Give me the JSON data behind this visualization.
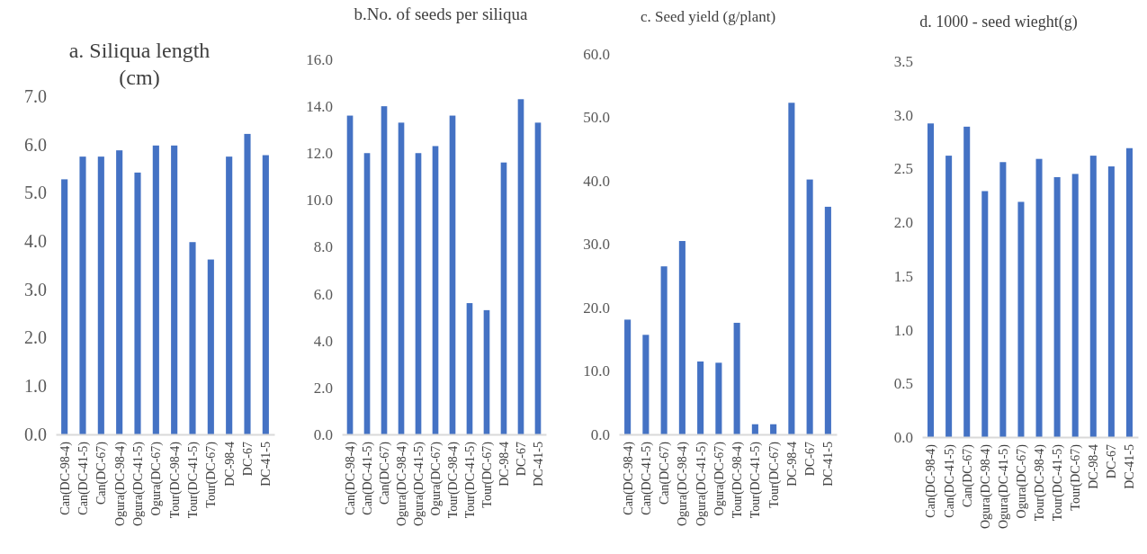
{
  "chart_data": [
    {
      "type": "bar",
      "title": "a. Siliqua length (cm)",
      "categories": [
        "Can(DC-98-4)",
        "Can(DC-41-5)",
        "Can(DC-67)",
        "Ogura(DC-98-4)",
        "Ogura(DC-41-5)",
        "Ogura(DC-67)",
        "Tour(DC-98-4)",
        "Tour(DC-41-5)",
        "Tour(DC-67)",
        "DC-98-4",
        "DC-67",
        "DC-41-5"
      ],
      "values": [
        5.28,
        5.75,
        5.75,
        5.88,
        5.42,
        5.98,
        5.98,
        3.98,
        3.62,
        5.75,
        6.22,
        5.78
      ],
      "color": "#4472c4",
      "ylim": [
        0,
        7
      ],
      "yticks": [
        {
          "value": 0,
          "label": "0.0"
        },
        {
          "value": 1,
          "label": "1.0"
        },
        {
          "value": 2,
          "label": "2.0"
        },
        {
          "value": 3,
          "label": "3.0"
        },
        {
          "value": 4,
          "label": "4.0"
        },
        {
          "value": 5,
          "label": "5.0"
        },
        {
          "value": 6,
          "label": "6.0"
        },
        {
          "value": 7,
          "label": "7.0"
        }
      ],
      "grid": false
    },
    {
      "type": "bar",
      "title": "b.No. of seeds per siliqua",
      "categories": [
        "Can(DC-98-4)",
        "Can(DC-41-5)",
        "Can(DC-67)",
        "Ogura(DC-98-4)",
        "Ogura(DC-41-5)",
        "Ogura(DC-67)",
        "Tour(DC-98-4)",
        "Tour(DC-41-5)",
        "Tour(DC-67)",
        "DC-98-4",
        "DC-67",
        "DC-41-5"
      ],
      "values": [
        13.6,
        12.0,
        14.0,
        13.3,
        12.0,
        12.3,
        13.6,
        5.6,
        5.3,
        11.6,
        14.3,
        13.3
      ],
      "color": "#4472c4",
      "ylim": [
        0,
        16
      ],
      "yticks": [
        {
          "value": 0,
          "label": "0.0"
        },
        {
          "value": 2,
          "label": "2.0"
        },
        {
          "value": 4,
          "label": "4.0"
        },
        {
          "value": 6,
          "label": "6.0"
        },
        {
          "value": 8,
          "label": "8.0"
        },
        {
          "value": 10,
          "label": "10.0"
        },
        {
          "value": 12,
          "label": "12.0"
        },
        {
          "value": 14,
          "label": "14.0"
        },
        {
          "value": 16,
          "label": "16.0"
        }
      ],
      "grid": false
    },
    {
      "type": "bar",
      "title": "c. Seed yield (g/plant)",
      "categories": [
        "Can(DC-98-4)",
        "Can(DC-41-5)",
        "Can(DC-67)",
        "Ogura(DC-98-4)",
        "Ogura(DC-41-5)",
        "Ogura(DC-67)",
        "Tour(DC-98-4)",
        "Tour(DC-41-5)",
        "Tour(DC-67)",
        "DC-98-4",
        "DC-67",
        "DC-41-5"
      ],
      "values": [
        18.1,
        15.7,
        26.5,
        30.5,
        11.5,
        11.3,
        17.6,
        1.6,
        1.6,
        52.3,
        40.2,
        35.9
      ],
      "color": "#4472c4",
      "ylim": [
        0,
        60
      ],
      "yticks": [
        {
          "value": 0,
          "label": "0.0"
        },
        {
          "value": 10,
          "label": "10.0"
        },
        {
          "value": 20,
          "label": "20.0"
        },
        {
          "value": 30,
          "label": "30.0"
        },
        {
          "value": 40,
          "label": "40.0"
        },
        {
          "value": 50,
          "label": "50.0"
        },
        {
          "value": 60,
          "label": "60.0"
        }
      ],
      "grid": false
    },
    {
      "type": "bar",
      "title": "d. 1000 - seed wieght(g)",
      "categories": [
        "Can(DC-98-4)",
        "Can(DC-41-5)",
        "Can(DC-67)",
        "Ogura(DC-98-4)",
        "Ogura(DC-41-5)",
        "Ogura(DC-67)",
        "Tour(DC-98-4)",
        "Tour(DC-41-5)",
        "Tour(DC-67)",
        "DC-98-4",
        "DC-67",
        "DC-41-5"
      ],
      "values": [
        2.92,
        2.62,
        2.89,
        2.29,
        2.56,
        2.19,
        2.59,
        2.42,
        2.45,
        2.62,
        2.52,
        2.69
      ],
      "color": "#4472c4",
      "ylim": [
        0,
        3.5
      ],
      "yticks": [
        {
          "value": 0,
          "label": "0.0"
        },
        {
          "value": 0.5,
          "label": "0.5"
        },
        {
          "value": 1,
          "label": "1.0"
        },
        {
          "value": 1.5,
          "label": "1.5"
        },
        {
          "value": 2,
          "label": "2.0"
        },
        {
          "value": 2.5,
          "label": "2.5"
        },
        {
          "value": 3,
          "label": "3.0"
        },
        {
          "value": 3.5,
          "label": "3.5"
        }
      ],
      "grid": false
    }
  ]
}
